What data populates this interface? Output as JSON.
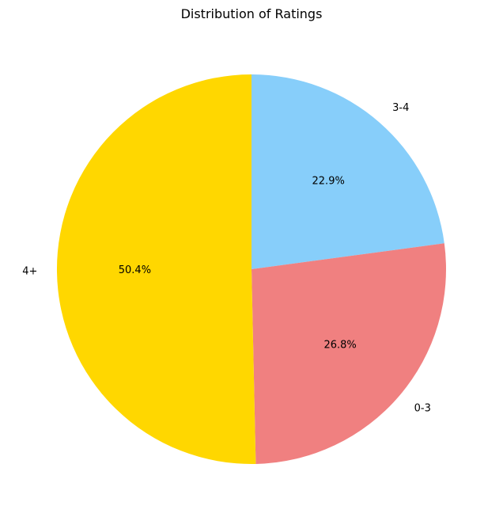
{
  "chart_data": {
    "type": "pie",
    "title": "Distribution of Ratings",
    "start_angle_deg": 90,
    "direction": "clockwise",
    "legend": "none",
    "slices": [
      {
        "label": "3-4",
        "value": 22.9,
        "pct_label": "22.9%",
        "color": "#87CEFA"
      },
      {
        "label": "0-3",
        "value": 26.8,
        "pct_label": "26.8%",
        "color": "#F08080"
      },
      {
        "label": "4+",
        "value": 50.4,
        "pct_label": "50.4%",
        "color": "#FFD700"
      }
    ]
  }
}
